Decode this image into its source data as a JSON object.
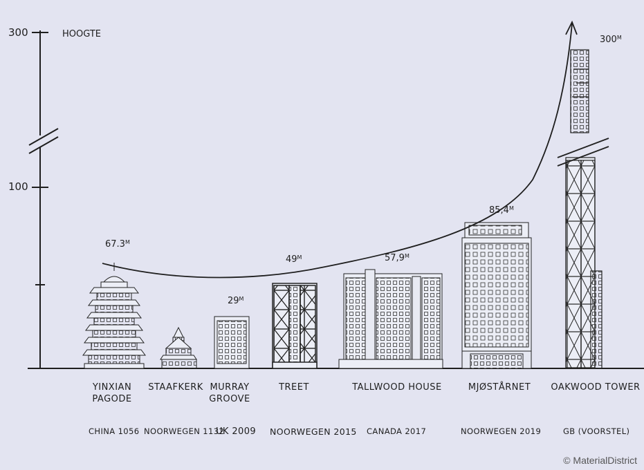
{
  "axis": {
    "label": "HOOGTE",
    "ticks": [
      "300",
      "100"
    ]
  },
  "buildings": [
    {
      "name": "YINXIAN PAGODE",
      "location": "CHINA 1056",
      "height": "67.3",
      "unit": "M"
    },
    {
      "name": "STAAFKERK",
      "location": "NOORWEGEN 1132",
      "height": "",
      "unit": ""
    },
    {
      "name": "MURRAY GROOVE",
      "location": "UK 2009",
      "height": "29",
      "unit": "M"
    },
    {
      "name": "TREET",
      "location": "NOORWEGEN 2015",
      "height": "49",
      "unit": "M"
    },
    {
      "name": "TALLWOOD HOUSE",
      "location": "CANADA 2017",
      "height": "57,9",
      "unit": "M"
    },
    {
      "name": "MJØSTÅRNET",
      "location": "NOORWEGEN 2019",
      "height": "85,4",
      "unit": "M"
    },
    {
      "name": "OAKWOOD TOWER",
      "location": "GB (VOORSTEL)",
      "height": "300",
      "unit": "M"
    }
  ],
  "copyright": "© MaterialDistrict"
}
